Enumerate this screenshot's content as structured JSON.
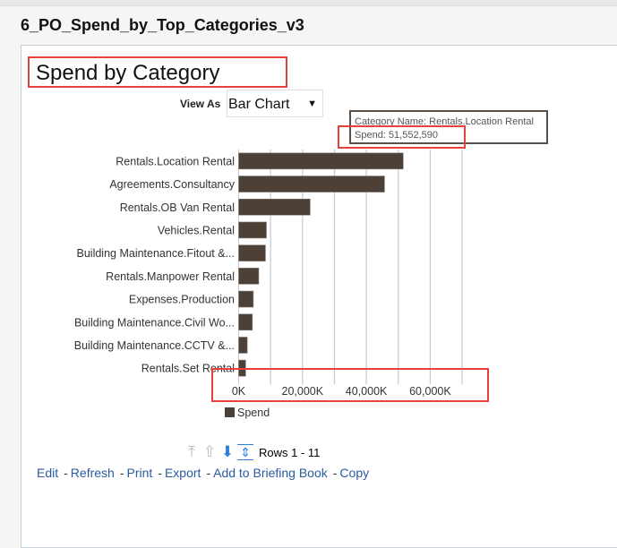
{
  "page_title": "6_PO_Spend_by_Top_Categories_v3",
  "chart_title": "Spend by Category",
  "view_as": {
    "label": "View As",
    "selected": "Bar Chart"
  },
  "tooltip": {
    "line1": "Category Name: Rentals.Location Rental",
    "line2": "Spend: 51,552,590"
  },
  "highlight_color": "#e8413c",
  "chart_data": {
    "type": "bar",
    "orientation": "horizontal",
    "categories": [
      "Rentals.Location Rental",
      "Agreements.Consultancy",
      "Rentals.OB Van Rental",
      "Vehicles.Rental",
      "Building Maintenance.Fitout &...",
      "Rentals.Manpower Rental",
      "Expenses.Production",
      "Building Maintenance.Civil Wo...",
      "Building Maintenance.CCTV &...",
      "Rentals.Set Rental"
    ],
    "series": [
      {
        "name": "Spend",
        "color": "#4d4037",
        "values": [
          51552.59,
          45700,
          22400,
          8700,
          8400,
          6300,
          4600,
          4300,
          2700,
          2200
        ]
      }
    ],
    "value_unit": "K",
    "xlim": [
      0,
      70000
    ],
    "xticks": [
      0,
      20000,
      40000,
      60000
    ],
    "xtick_labels": [
      "0K",
      "20,000K",
      "40,000K",
      "60,000K"
    ],
    "grid": true,
    "grid_step": 10000,
    "legend": "bottom-left"
  },
  "pager": {
    "rows_label": "Rows 1 - 11",
    "icons": [
      "first-page-icon",
      "previous-page-icon",
      "next-page-icon",
      "all-rows-icon"
    ]
  },
  "links": [
    "Edit",
    "Refresh",
    "Print",
    "Export",
    "Add to Briefing Book",
    "Copy"
  ]
}
